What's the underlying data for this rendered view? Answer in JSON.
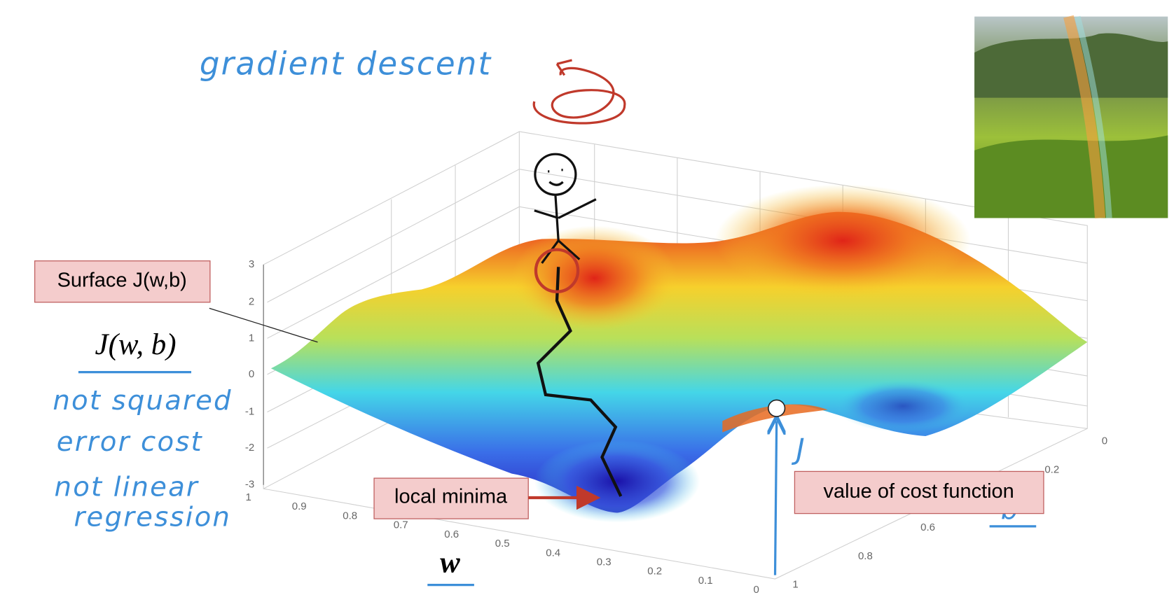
{
  "annotations": {
    "title": "gradient descent",
    "surface_label": "Surface J(w,b)",
    "cost_symbol": "J(w, b)",
    "notes": [
      "not squared",
      "error cost",
      "not linear",
      "regression"
    ],
    "local_minima": "local minima",
    "value_label": "value of cost function",
    "j_label": "J",
    "w_label": "w",
    "b_label": "b"
  },
  "axes": {
    "z_ticks": [
      3,
      2,
      1,
      0,
      -1,
      -2,
      -3
    ],
    "w_ticks": [
      1,
      0.9,
      0.8,
      0.7,
      0.6,
      0.5,
      0.4,
      0.3,
      0.2,
      0.1,
      0
    ],
    "b_ticks": [
      0,
      0.2,
      0.6,
      0.8,
      1
    ]
  }
}
